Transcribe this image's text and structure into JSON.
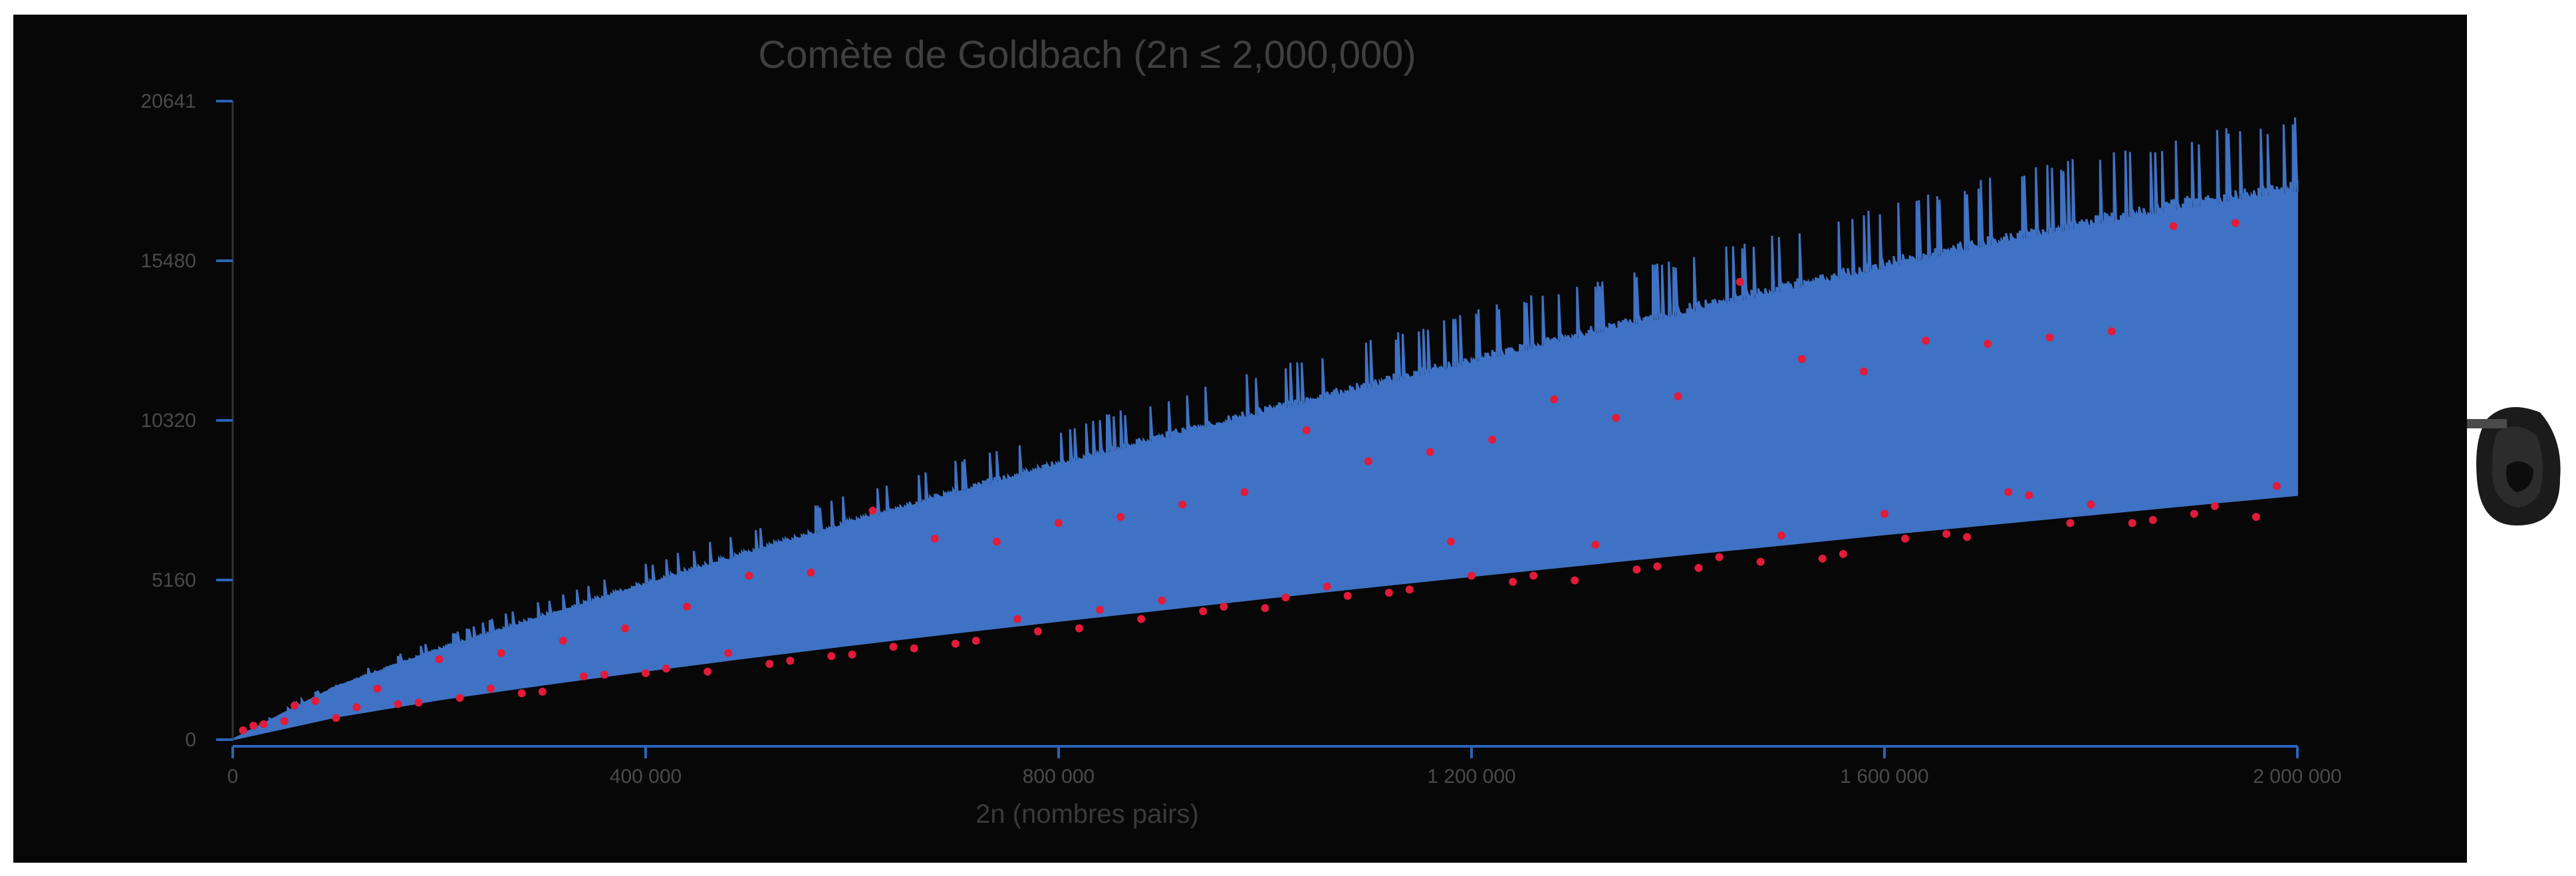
{
  "chart_data": {
    "type": "scatter",
    "title": "Comète de Goldbach (2n ≤ 2,000,000)",
    "xlabel": "2n (nombres pairs)",
    "ylabel": "",
    "xlim": [
      0,
      2000000
    ],
    "ylim": [
      0,
      20641
    ],
    "x_ticks": [
      0,
      400000,
      800000,
      1200000,
      1600000,
      2000000
    ],
    "x_tick_labels": [
      "0",
      "400 000",
      "800 000",
      "1 200 000",
      "1 600 000",
      "2 000 000"
    ],
    "y_ticks": [
      0,
      5160,
      10320,
      15480,
      20641
    ],
    "y_tick_labels": [
      "0",
      "5160",
      "10320",
      "15480",
      "20641"
    ],
    "grid": false,
    "colors": {
      "background": "#070707",
      "band": "#3f72c4",
      "highlight": "#e21b3a",
      "axis": "#2b63b8"
    },
    "series": [
      {
        "role": "band",
        "x": [
          0,
          100000,
          200000,
          300000,
          400000,
          500000,
          600000,
          700000,
          800000,
          900000,
          1000000,
          1100000,
          1200000,
          1300000,
          1400000,
          1500000,
          1600000,
          1700000,
          1800000,
          1900000,
          2000000
        ],
        "lower": [
          0,
          730,
          1290,
          1770,
          2220,
          2650,
          3060,
          3450,
          3830,
          4200,
          4570,
          4930,
          5280,
          5620,
          5960,
          6290,
          6630,
          6950,
          7270,
          7590,
          7900
        ],
        "upper": [
          0,
          1700,
          2900,
          3950,
          5000,
          6000,
          7000,
          7950,
          8850,
          9700,
          10550,
          11350,
          12150,
          12950,
          13700,
          14450,
          15200,
          15950,
          16600,
          17200,
          17700
        ]
      },
      {
        "role": "highlighted",
        "x": [
          10000,
          20000,
          30000,
          50000,
          60000,
          80000,
          100000,
          120000,
          140000,
          160000,
          180000,
          200000,
          220000,
          250000,
          260000,
          280000,
          300000,
          320000,
          340000,
          360000,
          380000,
          400000,
          420000,
          440000,
          460000,
          480000,
          500000,
          520000,
          540000,
          560000,
          580000,
          600000,
          620000,
          640000,
          660000,
          680000,
          700000,
          720000,
          740000,
          760000,
          780000,
          800000,
          820000,
          840000,
          860000,
          880000,
          900000,
          920000,
          940000,
          960000,
          980000,
          1000000,
          1020000,
          1040000,
          1060000,
          1080000,
          1100000,
          1120000,
          1140000,
          1160000,
          1180000,
          1200000,
          1220000,
          1240000,
          1260000,
          1280000,
          1300000,
          1320000,
          1340000,
          1360000,
          1380000,
          1400000,
          1420000,
          1440000,
          1460000,
          1480000,
          1500000,
          1520000,
          1540000,
          1560000,
          1580000,
          1600000,
          1620000,
          1640000,
          1660000,
          1680000,
          1700000,
          1720000,
          1740000,
          1760000,
          1780000,
          1800000,
          1820000,
          1840000,
          1860000,
          1880000,
          1900000,
          1920000,
          1940000,
          1960000,
          1980000
        ],
        "y": [
          300,
          450,
          500,
          600,
          1100,
          1250,
          700,
          1050,
          1650,
          1150,
          1200,
          2600,
          1350,
          1650,
          2800,
          1500,
          1550,
          3200,
          2050,
          2100,
          3600,
          2150,
          2300,
          4300,
          2200,
          2800,
          5300,
          2450,
          2550,
          5400,
          2700,
          2750,
          7400,
          3000,
          2950,
          6500,
          3100,
          3200,
          6400,
          3900,
          3500,
          7000,
          3600,
          4200,
          7200,
          3900,
          4500,
          7600,
          4150,
          4300,
          8000,
          4250,
          4600,
          10000,
          4950,
          4650,
          9000,
          4750,
          4850,
          9300,
          6400,
          5300,
          9700,
          5100,
          5300,
          11000,
          5150,
          6300,
          10400,
          5500,
          5600,
          11100,
          5550,
          5900,
          14800,
          5750,
          6600,
          12300,
          5850,
          6000,
          11900,
          7300,
          6500,
          12900,
          6650,
          6550,
          12800,
          8000,
          7900,
          13000,
          7000,
          7600,
          13200,
          7000,
          7100,
          16600,
          7300,
          7550,
          16700,
          7200,
          8200
        ]
      }
    ]
  }
}
